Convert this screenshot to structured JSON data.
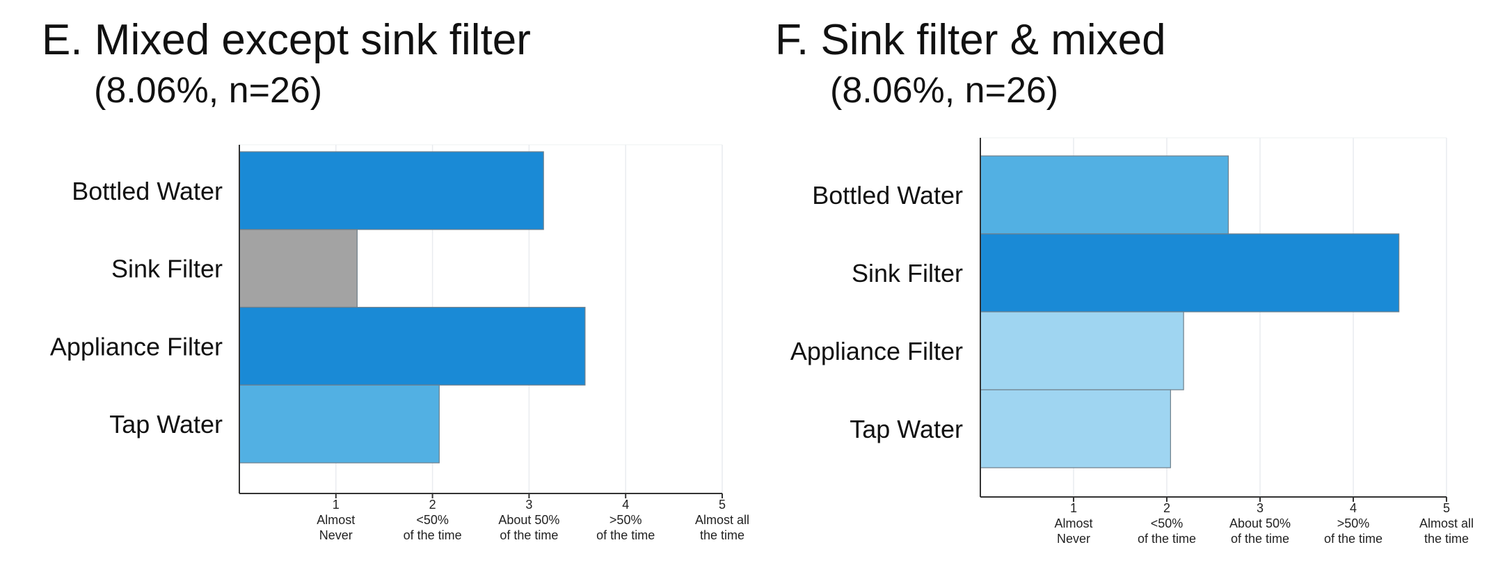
{
  "chart_data": [
    {
      "type": "bar",
      "orientation": "horizontal",
      "title": "E. Mixed except sink filter",
      "subtitle": "(8.06%, n=26)",
      "categories": [
        "Bottled Water",
        "Sink Filter",
        "Appliance Filter",
        "Tap Water"
      ],
      "values": [
        3.15,
        1.22,
        3.58,
        2.07
      ],
      "colors": [
        "#1a8ad6",
        "#a3a3a3",
        "#1a8ad6",
        "#52b0e3"
      ],
      "xlim": [
        0,
        5
      ],
      "xticks": [
        1,
        2,
        3,
        4,
        5
      ],
      "xtick_labels": [
        [
          "1",
          "Almost",
          "Never"
        ],
        [
          "2",
          "<50%",
          "of the time"
        ],
        [
          "3",
          "About 50%",
          "of the time"
        ],
        [
          "4",
          ">50%",
          "of the time"
        ],
        [
          "5",
          "Almost all",
          "the time"
        ]
      ],
      "grid": true
    },
    {
      "type": "bar",
      "orientation": "horizontal",
      "title": "F. Sink filter & mixed",
      "subtitle": "(8.06%, n=26)",
      "categories": [
        "Bottled Water",
        "Sink Filter",
        "Appliance Filter",
        "Tap Water"
      ],
      "values": [
        2.66,
        4.49,
        2.18,
        2.04
      ],
      "colors": [
        "#52b0e3",
        "#1a8ad6",
        "#9fd5f1",
        "#9fd5f1"
      ],
      "xlim": [
        0,
        5
      ],
      "xticks": [
        1,
        2,
        3,
        4,
        5
      ],
      "xtick_labels": [
        [
          "1",
          "Almost",
          "Never"
        ],
        [
          "2",
          "<50%",
          "of the time"
        ],
        [
          "3",
          "About 50%",
          "of the time"
        ],
        [
          "4",
          ">50%",
          "of the time"
        ],
        [
          "5",
          "Almost all",
          "the time"
        ]
      ],
      "grid": true
    }
  ]
}
